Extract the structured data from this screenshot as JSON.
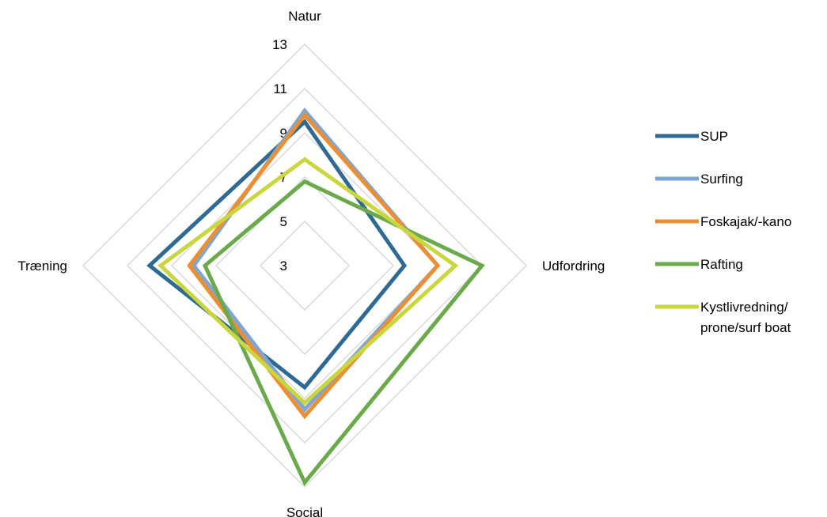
{
  "chart_data": {
    "type": "radar",
    "axes": [
      "Natur",
      "Udfordring",
      "Social",
      "Træning"
    ],
    "r_ticks": [
      "13",
      "11",
      "9",
      "7",
      "5",
      "3"
    ],
    "r_range": [
      3,
      13
    ],
    "gridlines": true,
    "legend_position": "right",
    "series": [
      {
        "name": "SUP",
        "values": [
          9.5,
          7.5,
          8.5,
          10.0
        ],
        "color": "#2E6A93"
      },
      {
        "name": "Surfing",
        "values": [
          10.0,
          9.0,
          9.5,
          8.0
        ],
        "color": "#7FA6D3"
      },
      {
        "name": "Foskajak/-kano",
        "values": [
          9.8,
          9.0,
          9.8,
          8.2
        ],
        "color": "#EC8F33"
      },
      {
        "name": "Rafting",
        "values": [
          6.8,
          11.0,
          12.8,
          7.5
        ],
        "color": "#6BAA4B"
      },
      {
        "name": [
          "Kystlivredning/",
          "prone/surf boat"
        ],
        "values": [
          7.8,
          9.8,
          9.2,
          9.5
        ],
        "color": "#C9D63E"
      }
    ]
  }
}
